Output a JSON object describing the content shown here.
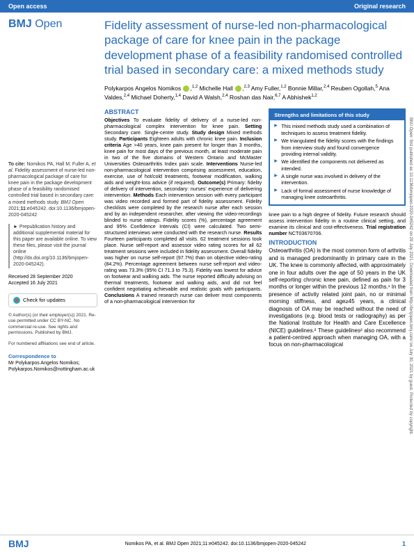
{
  "header": {
    "left": "Open access",
    "right": "Original research"
  },
  "logo": {
    "bold": "BMJ",
    "light": " Open"
  },
  "title": "Fidelity assessment of nurse-led non-pharmacological package of care for knee pain in the package development phase of a feasibility randomised controlled trial based in secondary care: a mixed methods study",
  "authors_html": "Polykarpos Angelos Nomikos <span class='orcid'></span>,<span class='sup'>1,2</span> Michelle Hall <span class='orcid'></span>,<span class='sup'>2,3</span> Amy Fuller,<span class='sup'>1,2</span> Bonnie Millar,<span class='sup'>2,4</span> Reuben Ogollah,<span class='sup'>5</span> Ana Valdes,<span class='sup'>2,4</span> Michael Doherty,<span class='sup'>1,4</span> David A Walsh,<span class='sup'>2,4</span> Roshan das Nair,<span class='sup'>6,7</span> A Abhishek<span class='sup'>1,2</span>",
  "cite": "<b>To cite:</b> Nomikos PA, Hall M, Fuller A, <i>et al.</i> Fidelity assessment of nurse-led non-pharmacological package of care for knee pain in the package development phase of a feasibility randomised controlled trial based in secondary care: a mixed methods study. <i>BMJ Open</i> 2021;<b>11</b>:e045242. doi:10.1136/bmjopen-2020-045242",
  "supp": "► Prepublication history and additional supplemental material for this paper are available online. To view these files, please visit the journal online (http://dx.doi.org/10.1136/bmjopen-2020-045242).",
  "dates": {
    "received": "Received 28 September 2020",
    "accepted": "Accepted 16 July 2021"
  },
  "check_updates": "Check for updates",
  "copyright": "© Author(s) (or their employer(s)) 2021. Re-use permitted under CC BY-NC. No commercial re-use. See rights and permissions. Published by BMJ.",
  "affiliations_note": "For numbered affiliations see end of article.",
  "correspondence": {
    "title": "Correspondence to",
    "body": "Mr Polykarpos Angelos Nomikos; Polykarpos.Nomikos@nottingham.ac.uk"
  },
  "abstract": {
    "title": "ABSTRACT",
    "objectives": "<b>Objectives</b> To evaluate fidelity of delivery of a nurse-led non-pharmacological complex intervention for knee pain.",
    "setting": "<b>Setting</b> Secondary care. Single-centre study.",
    "design": "<b>Study design</b> Mixed methods study.",
    "participants": "<b>Participants</b> Eighteen adults with chronic knee pain.",
    "inclusion": "<b>Inclusion criteria</b> Age >40 years, knee pain present for longer than 3 months, knee pain for most days of the previous month, at least moderate pain in two of the five domains of Western Ontario and McMaster Universities Osteoarthritis Index pain scale.",
    "interventions": "<b>Interventions</b> Nurse-led non-pharmacological intervention comprising assessment, education, exercise, use of hot/cold treatments, footwear modification, walking aids and weight-loss advice (if required).",
    "outcomes": "<b>Outcome(s)</b> Primary: fidelity of delivery of intervention, secondary: nurses' experience of delivering intervention.",
    "methods": "<b>Methods</b> Each intervention session with every participant was video recorded and formed part of fidelity assessment. Fidelity checklists were completed by the research nurse after each session and by an independent researcher, after viewing the video-recordings blinded to nurse ratings. Fidelity scores (%), percentage agreement and 95% Confidence Intervals (CI) were calculated. Two semi-structured interviews were conducted with the research nurse.",
    "results": "<b>Results</b> Fourteen participants completed all visits. 62 treatment sessions took place. Nurse self-report and assessor video rating scores for all 62 treatment sessions were included in fidelity assessment. Overall fidelity was higher on nurse self-report (97.7%) than on objective video-rating (84.2%). Percentage agreement between nurse self-report and video-rating was 73.3% (95% CI 71.3 to 75.3). Fidelity was lowest for advice on footwear and walking aids. The nurse reported difficulty advising on thermal treatments, footwear and walking aids, and did not feel confident negotiating achievable and realistic goals with participants.",
    "conclusions": "<b>Conclusions</b> A trained research nurse can deliver most components of a non-pharmacological intervention for"
  },
  "strengths": {
    "title": "Strengths and limitations of this study",
    "items": [
      "This mixed methods study used a combination of techniques to assess treatment fidelity.",
      "We triangulated the fidelity scores with the findings from interview study and found convergence providing internal validity.",
      "We identified the components not delivered as intended.",
      "A single nurse was involved in delivery of the intervention.",
      "Lack of formal assessment of nurse knowledge of managing knee osteoarthritis."
    ]
  },
  "continuation": "knee pain to a high degree of fidelity. Future research should assess intervention fidelity in a routine clinical setting, and examine its clinical and cost-effectiveness.",
  "trial": "<b>Trial registration number</b> NCT03670706.",
  "intro": {
    "title": "INTRODUCTION",
    "text": "Osteoarthritis (OA) is the most common form of arthritis and is managed predominantly in primary care in the UK. The knee is commonly affected, with approximately one in four adults over the age of 50 years in the UK self-reporting chronic knee pain, defined as pain for 3 months or longer within the previous 12 months.¹ In the presence of activity related joint pain, no or minimal morning stiffness, and age≥45 years, a clinical diagnosis of OA may be reached without the need of investigations (e.g. blood tests or radiography) as per the National Institute for Health and Care Excellence (NICE) guidelines.² These guidelines² also recommend a patient-centred approach when managing OA, with a focus on non-pharmacological"
  },
  "footer": {
    "logo": "BMJ",
    "cite": "Nomikos PA, et al. BMJ Open 2021;11:e045242. doi:10.1136/bmjopen-2020-045242",
    "page": "1"
  },
  "sidebar": "BMJ Open: first published as 10.1136/bmjopen-2020-045242 on 29 July 2021. Downloaded from http://bmjopen.bmj.com/ on July 30, 2021 by guest. Protected by copyright."
}
